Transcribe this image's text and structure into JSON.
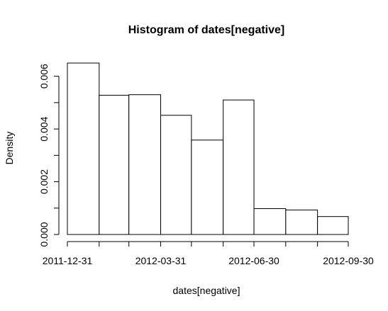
{
  "chart_data": {
    "type": "bar",
    "title": "Histogram of dates[negative]",
    "xlabel": "dates[negative]",
    "ylabel": "Density",
    "bins": [
      {
        "start": "2011-12-31",
        "end": "2012-01-31",
        "density": 0.0065
      },
      {
        "start": "2012-01-31",
        "end": "2012-02-29",
        "density": 0.00528
      },
      {
        "start": "2012-02-29",
        "end": "2012-03-31",
        "density": 0.0053
      },
      {
        "start": "2012-03-31",
        "end": "2012-04-30",
        "density": 0.00452
      },
      {
        "start": "2012-04-30",
        "end": "2012-05-31",
        "density": 0.00358
      },
      {
        "start": "2012-05-31",
        "end": "2012-06-30",
        "density": 0.0051
      },
      {
        "start": "2012-06-30",
        "end": "2012-07-31",
        "density": 0.00098
      },
      {
        "start": "2012-07-31",
        "end": "2012-08-31",
        "density": 0.00093
      },
      {
        "start": "2012-08-31",
        "end": "2012-09-30",
        "density": 0.00068
      }
    ],
    "xticks": [
      "2011-12-31",
      "2012-01-31",
      "2012-02-29",
      "2012-03-31",
      "2012-04-30",
      "2012-05-31",
      "2012-06-30",
      "2012-07-31",
      "2012-08-31",
      "2012-09-30"
    ],
    "xtick_labels": [
      "2011-12-31",
      "",
      "",
      "2012-03-31",
      "",
      "",
      "2012-06-30",
      "",
      "",
      "2012-09-30"
    ],
    "yticks": [
      0.0,
      0.001,
      0.002,
      0.003,
      0.004,
      0.005,
      0.006
    ],
    "ytick_labels": [
      "0.000",
      "",
      "0.002",
      "",
      "0.004",
      "",
      "0.006"
    ],
    "xlim": [
      "2011-12-31",
      "2012-09-30"
    ],
    "ylim": [
      0,
      0.0065
    ],
    "grid": false,
    "legend": false,
    "colors": {
      "bar_fill": "#ffffff",
      "bar_stroke": "#000000",
      "axis": "#000000"
    }
  }
}
